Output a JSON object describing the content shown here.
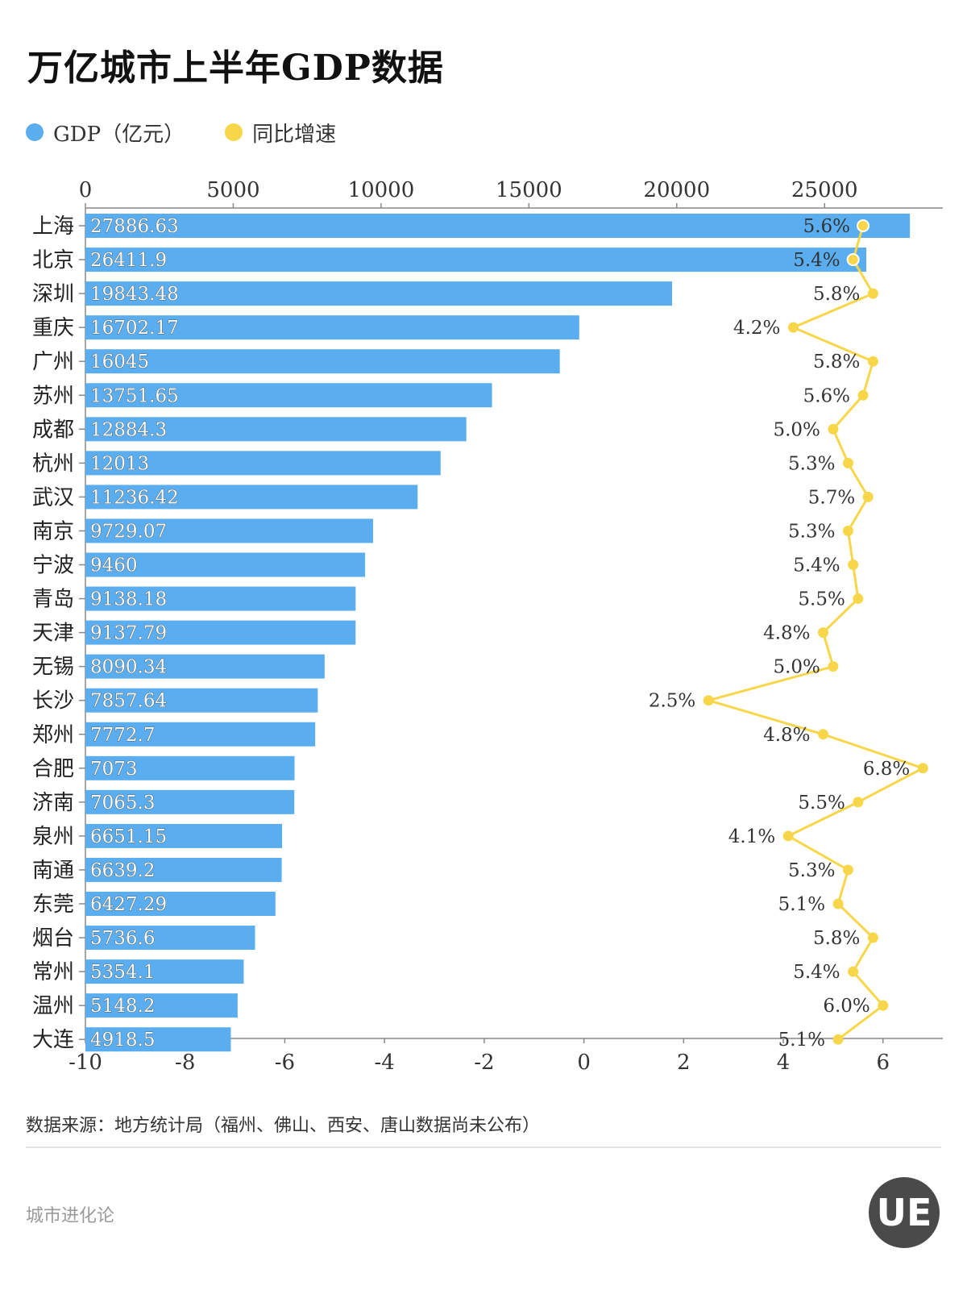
{
  "title": "万亿城市上半年GDP数据",
  "legend": [
    {
      "label": "GDP（亿元）",
      "color": "#5aaeef"
    },
    {
      "label": "同比增速",
      "color": "#f7d64a"
    }
  ],
  "source": "数据来源：地方统计局（福州、佛山、西安、唐山数据尚未公布）",
  "brand": "城市进化论",
  "logo": {
    "text": "UE"
  },
  "chart_data": {
    "type": "bar",
    "orientation": "horizontal",
    "categories": [
      "上海",
      "北京",
      "深圳",
      "重庆",
      "广州",
      "苏州",
      "成都",
      "杭州",
      "武汉",
      "南京",
      "宁波",
      "青岛",
      "天津",
      "无锡",
      "长沙",
      "郑州",
      "合肥",
      "济南",
      "泉州",
      "南通",
      "东莞",
      "烟台",
      "常州",
      "温州",
      "大连"
    ],
    "series": [
      {
        "name": "GDP（亿元）",
        "type": "bar",
        "axis": "top",
        "color": "#5aaeef",
        "values": [
          27886.63,
          26411.9,
          19843.48,
          16702.17,
          16045,
          13751.65,
          12884.3,
          12013,
          11236.42,
          9729.07,
          9460,
          9138.18,
          9137.79,
          8090.34,
          7857.64,
          7772.7,
          7073,
          7065.3,
          6651.15,
          6639.2,
          6427.29,
          5736.6,
          5354.1,
          5148.2,
          4918.5
        ],
        "labels": [
          "27886.63",
          "26411.9",
          "19843.48",
          "16702.17",
          "16045",
          "13751.65",
          "12884.3",
          "12013",
          "11236.42",
          "9729.07",
          "9460",
          "9138.18",
          "9137.79",
          "8090.34",
          "7857.64",
          "7772.7",
          "7073",
          "7065.3",
          "6651.15",
          "6639.2",
          "6427.29",
          "5736.6",
          "5354.1",
          "5148.2",
          "4918.5"
        ]
      },
      {
        "name": "同比增速",
        "type": "line",
        "axis": "bottom",
        "color": "#f7d64a",
        "values": [
          5.6,
          5.4,
          5.8,
          4.2,
          5.8,
          5.6,
          5.0,
          5.3,
          5.7,
          5.3,
          5.4,
          5.5,
          4.8,
          5.0,
          2.5,
          4.8,
          6.8,
          5.5,
          4.1,
          5.3,
          5.1,
          5.8,
          5.4,
          6.0,
          5.1
        ],
        "labels": [
          "5.6%",
          "5.4%",
          "5.8%",
          "4.2%",
          "5.8%",
          "5.6%",
          "5.0%",
          "5.3%",
          "5.7%",
          "5.3%",
          "5.4%",
          "5.5%",
          "4.8%",
          "5.0%",
          "2.5%",
          "4.8%",
          "6.8%",
          "5.5%",
          "4.1%",
          "5.3%",
          "5.1%",
          "5.8%",
          "5.4%",
          "6.0%",
          "5.1%"
        ]
      }
    ],
    "top_axis": {
      "min": 0,
      "max": 29000,
      "ticks": [
        0,
        5000,
        10000,
        15000,
        20000,
        25000
      ],
      "tick_labels": [
        "0",
        "5000",
        "10000",
        "15000",
        "20000",
        "25000"
      ]
    },
    "bottom_axis": {
      "min": -10,
      "max": 7.2,
      "ticks": [
        -10,
        -8,
        -6,
        -4,
        -2,
        0,
        2,
        4,
        6
      ],
      "tick_labels": [
        "-10",
        "-8",
        "-6",
        "-4",
        "-2",
        "0",
        "2",
        "4",
        "6"
      ]
    },
    "grid": false,
    "legend_position": "top-left"
  }
}
